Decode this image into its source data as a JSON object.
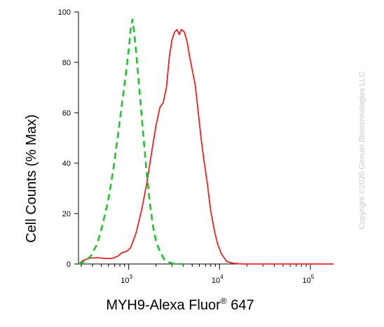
{
  "chart_data": {
    "type": "line",
    "title": "",
    "xlabel_main": "MYH9-Alexa Fluor",
    "xlabel_sup": "®",
    "xlabel_tail": " 647",
    "ylabel": "Cell Counts (% Max)",
    "x_scale": "log",
    "xlim": [
      280,
      180000
    ],
    "ylim": [
      0,
      100
    ],
    "yticks": [
      0,
      20,
      40,
      60,
      80,
      100
    ],
    "xticks": [
      {
        "value": 1000,
        "base": "10",
        "exp": "3"
      },
      {
        "value": 10000,
        "base": "10",
        "exp": "4"
      },
      {
        "value": 100000,
        "base": "10",
        "exp": "5"
      }
    ],
    "grid": false,
    "legend": "none",
    "series": [
      {
        "color": "#e82323",
        "dash": "solid",
        "points": [
          [
            280,
            0
          ],
          [
            320,
            1.5
          ],
          [
            370,
            2.3
          ],
          [
            450,
            2.5
          ],
          [
            550,
            2.2
          ],
          [
            650,
            2.2
          ],
          [
            750,
            3.0
          ],
          [
            850,
            4.5
          ],
          [
            950,
            5.0
          ],
          [
            1050,
            6.5
          ],
          [
            1200,
            12
          ],
          [
            1400,
            22
          ],
          [
            1600,
            33
          ],
          [
            1800,
            45
          ],
          [
            2000,
            55
          ],
          [
            2200,
            62
          ],
          [
            2400,
            64
          ],
          [
            2600,
            70
          ],
          [
            2800,
            82
          ],
          [
            3000,
            89
          ],
          [
            3200,
            92
          ],
          [
            3400,
            93
          ],
          [
            3600,
            91
          ],
          [
            3800,
            93
          ],
          [
            4100,
            92
          ],
          [
            4400,
            88
          ],
          [
            4700,
            82
          ],
          [
            5000,
            77
          ],
          [
            5400,
            71
          ],
          [
            5800,
            61
          ],
          [
            6300,
            49
          ],
          [
            6800,
            40
          ],
          [
            7400,
            31
          ],
          [
            8000,
            21
          ],
          [
            8800,
            13
          ],
          [
            9500,
            8
          ],
          [
            10500,
            4
          ],
          [
            12000,
            1
          ],
          [
            14000,
            0.3
          ],
          [
            18000,
            0
          ],
          [
            180000,
            0
          ]
        ]
      },
      {
        "color": "#1fc42a",
        "dash": "dashed",
        "points": [
          [
            280,
            0
          ],
          [
            330,
            1
          ],
          [
            380,
            3
          ],
          [
            450,
            8
          ],
          [
            520,
            16
          ],
          [
            600,
            26
          ],
          [
            680,
            38
          ],
          [
            760,
            51
          ],
          [
            840,
            63
          ],
          [
            920,
            74
          ],
          [
            1000,
            85
          ],
          [
            1050,
            93
          ],
          [
            1100,
            97
          ],
          [
            1150,
            92
          ],
          [
            1220,
            82
          ],
          [
            1320,
            68
          ],
          [
            1440,
            52
          ],
          [
            1560,
            38
          ],
          [
            1700,
            25
          ],
          [
            1850,
            15
          ],
          [
            2000,
            9
          ],
          [
            2200,
            5
          ],
          [
            2450,
            2
          ],
          [
            2800,
            0.6
          ],
          [
            3200,
            0
          ],
          [
            4000,
            0
          ]
        ]
      }
    ]
  },
  "watermark": {
    "copyright_text": "Copyright ©2025 Genuin Biotechnologies LLC"
  }
}
